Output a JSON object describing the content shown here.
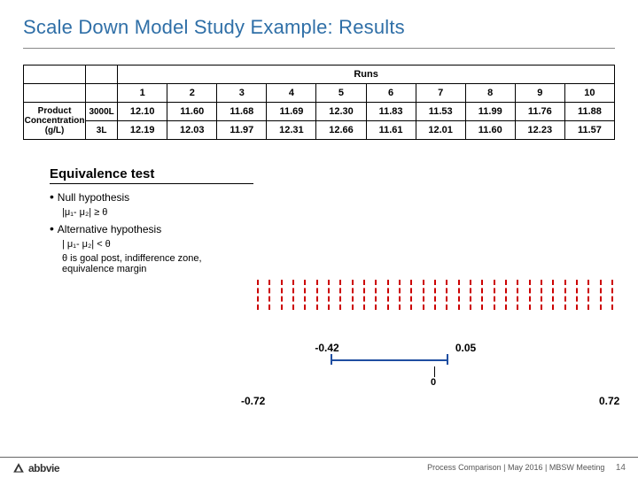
{
  "title": "Scale Down Model Study Example: Results",
  "title_color": "#2f6fa7",
  "table": {
    "runs_label": "Runs",
    "col_headers": [
      "1",
      "2",
      "3",
      "4",
      "5",
      "6",
      "7",
      "8",
      "9",
      "10"
    ],
    "row_label_html": "Product Concentration (g/L)",
    "rows": [
      {
        "scale": "3000L",
        "values": [
          "12.10",
          "11.60",
          "11.68",
          "11.69",
          "12.30",
          "11.83",
          "11.53",
          "11.99",
          "11.76",
          "11.88"
        ]
      },
      {
        "scale": "3L",
        "values": [
          "12.19",
          "12.03",
          "11.97",
          "12.31",
          "12.66",
          "11.61",
          "12.01",
          "11.60",
          "12.23",
          "11.57"
        ]
      }
    ]
  },
  "eq_test": {
    "title": "Equivalence test",
    "items": [
      {
        "text": "Null hypothesis",
        "formula": "|μ₁- μ₂| ≥ θ"
      },
      {
        "text": "Alternative hypothesis",
        "formula": "| μ₁- μ₂| < θ"
      }
    ],
    "note": "θ is goal post, indifference zone, equivalence margin"
  },
  "chart": {
    "axis_min": -0.72,
    "axis_max": 0.72,
    "zero": 0,
    "blue_low": -0.42,
    "blue_high": 0.05,
    "labels": {
      "axis_min": "-0.72",
      "axis_max": "0.72",
      "zero": "0",
      "blue_low": "-0.42",
      "blue_high": "0.05"
    },
    "colors": {
      "red": "#cc0000",
      "blue": "#1f4ea1",
      "black": "#000000"
    }
  },
  "footer": {
    "brand": "abbvie",
    "credit": "Process Comparison | May 2016 | MBSW Meeting",
    "page": "14"
  }
}
